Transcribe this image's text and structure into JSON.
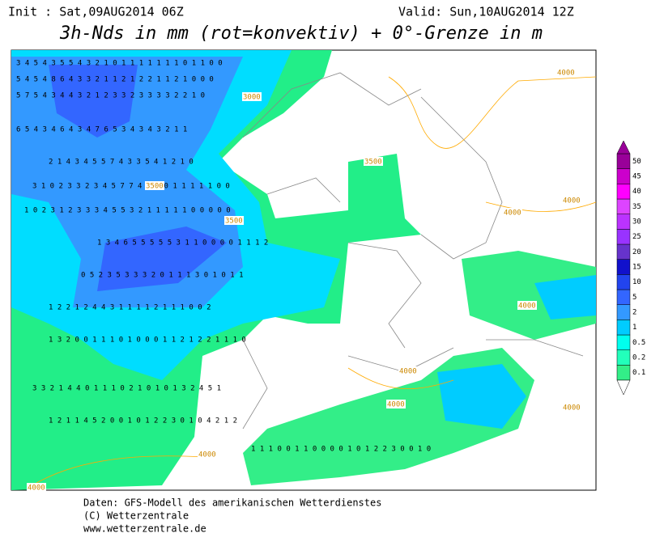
{
  "header": {
    "init": "Init : Sat,09AUG2014 06Z",
    "valid": "Valid: Sun,10AUG2014 12Z",
    "title": "3h-Nds in mm (rot=konvektiv) + 0°-Grenze in m"
  },
  "contour_labels": [
    "3000",
    "3500",
    "3500",
    "3500",
    "4000",
    "4000",
    "4000",
    "4000",
    "4000",
    "4000",
    "4000",
    "4000",
    "4000"
  ],
  "digit_rows": [
    "3 4 5 4 3 5 5 4 3 2 1 0 1 1 1 1 1 1 1 0 1 1 0 0",
    "5 4 5 4 8 6 4 3 3 2 1 1 2 1 2 2 1 1 2 1 0 0 0",
    "5 7 5 4 3 4 4 3 2 1 2 3 3 2 3 3 3 3 2 2 1 0",
    "6 5 4 3 4 6 4 3 4 7 6 5 3 4 3 4 3 2 1 1",
    "2 1 4 3 4 5 5 7 4 3 3 5 4 1 2 1 0",
    "3 1 0 2 3 3 2 3 4 5 7 7 4 2 1 0 1 1 1 1 1 0 0",
    "1 0 2 3 1 2 3 3 3 4 5 5 3 2 1 1 1 1 1 0 0 0 0 0",
    "1 3 4 6 5 5 5 5 5 3 1 1 0 0 0 0 1 1 1 2",
    "0 5 2 3 5 3 3 3 2 0 1 1 1 3 0 1 0 1 1",
    "1 2 2 1 2 4 4 3 1 1 1 1 2 1 1 1 0 0 2",
    "1 3 2 0 0 1 1 1 0 1 0 0 0 1 1 2 1 2 2 1 1 1 0",
    "3 3 2 1 4 4 0 1 1 1 0 2 1 0 1 0 1 3 2 4 5 1",
    "1 2 1 1 4 5 2 0 0 1 0 1 2 2 3 0 1 0 4 2 1 2",
    "1 1 1 0 0 1 1 0 0 0 0 1 0 1 2 2 3 0 0 1 0"
  ],
  "legend": {
    "levels": [
      0.1,
      0.2,
      0.5,
      1,
      2,
      5,
      10,
      15,
      20,
      25,
      30,
      35,
      40,
      45,
      50
    ],
    "colors": [
      "#33ee88",
      "#22ffbb",
      "#00ffee",
      "#00ccff",
      "#3399ff",
      "#3366ff",
      "#2244ee",
      "#1111cc",
      "#6633cc",
      "#9933ff",
      "#bb33ff",
      "#dd44ff",
      "#ff00ff",
      "#cc00cc",
      "#990099"
    ]
  },
  "footer": [
    "Daten: GFS-Modell des amerikanischen Wetterdienstes",
    "(C) Wetterzentrale",
    "www.wetterzentrale.de"
  ]
}
